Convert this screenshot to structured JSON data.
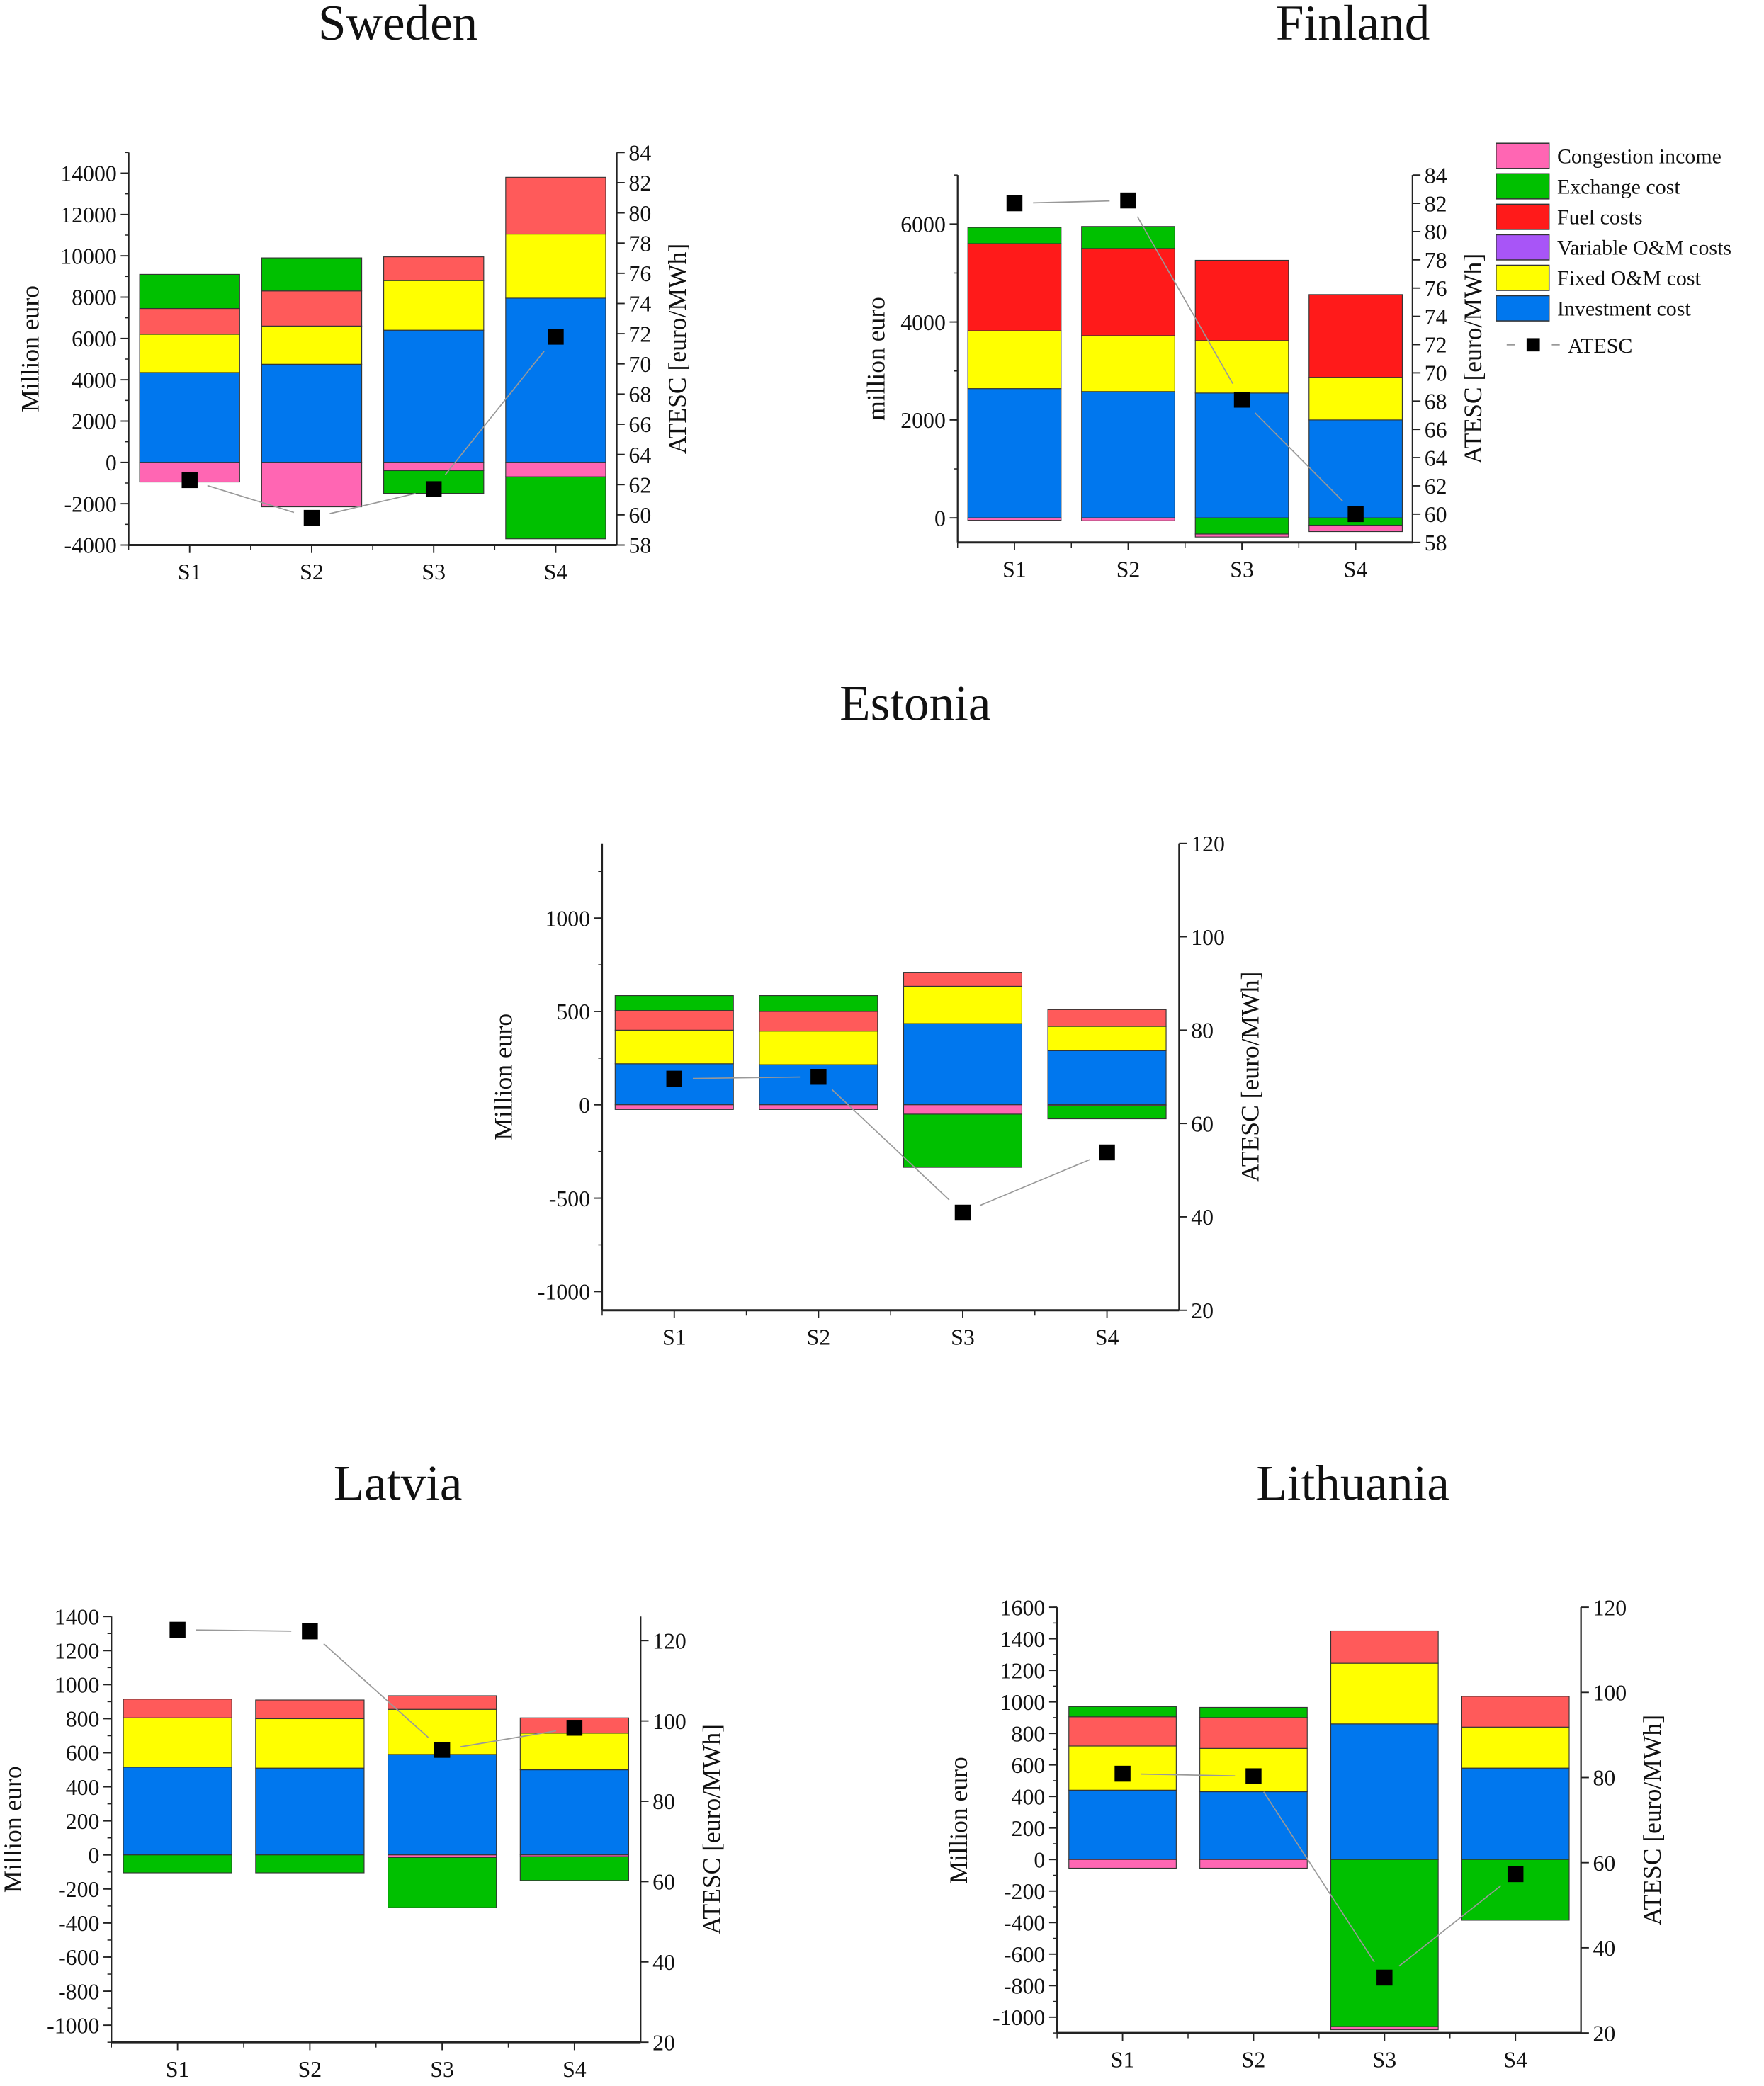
{
  "legend": {
    "items": [
      {
        "label": "Congestion income",
        "color": "#ff66b3"
      },
      {
        "label": "Exchange cost",
        "color": "#00c000"
      },
      {
        "label": "Fuel costs",
        "color": "#ff1a1a"
      },
      {
        "label": "Variable O&M costs",
        "color": "#a855f7"
      },
      {
        "label": "Fixed O&M cost",
        "color": "#ffff00"
      },
      {
        "label": "Investment cost",
        "color": "#0077ee"
      }
    ],
    "line_label": "ATESC"
  },
  "chart_data": [
    {
      "type": "bar",
      "stacked": true,
      "title": "Sweden",
      "ylabel": "Million euro",
      "y2label": "ATESC [euro/MWh]",
      "categories": [
        "S1",
        "S2",
        "S3",
        "S4"
      ],
      "ylim": [
        -4000,
        15000
      ],
      "yticks": [
        "-4000",
        "-2000",
        "0",
        "2000",
        "4000",
        "6000",
        "8000",
        "10000",
        "12000",
        "14000"
      ],
      "y2lim": [
        58,
        84
      ],
      "y2ticks": [
        "58",
        "60",
        "62",
        "64",
        "66",
        "68",
        "70",
        "72",
        "74",
        "76",
        "78",
        "80",
        "82",
        "84"
      ],
      "series": [
        {
          "name": "Investment cost",
          "color": "#0077ee",
          "values": [
            4350,
            4750,
            6400,
            7950
          ]
        },
        {
          "name": "Fixed O&M cost",
          "color": "#ffff00",
          "values": [
            1850,
            1850,
            2400,
            3100
          ]
        },
        {
          "name": "Variable O&M costs",
          "color": "#a855f7",
          "values": [
            0,
            0,
            0,
            0
          ]
        },
        {
          "name": "Fuel costs",
          "color": "#ff5a5a",
          "values": [
            1250,
            1700,
            1150,
            2750
          ]
        },
        {
          "name": "Congestion income",
          "color": "#ff66b3",
          "values": [
            -950,
            -2150,
            -400,
            -700
          ]
        },
        {
          "name": "Exchange cost",
          "color": "#00c000",
          "values": [
            1650,
            1600,
            -1100,
            -3000
          ]
        }
      ],
      "line": {
        "name": "ATESC",
        "values": [
          62.3,
          59.8,
          61.7,
          71.8
        ]
      }
    },
    {
      "type": "bar",
      "stacked": true,
      "title": "Finland",
      "ylabel": "million euro",
      "y2label": "ATESC [euro/MWh]",
      "categories": [
        "S1",
        "S2",
        "S3",
        "S4"
      ],
      "ylim": [
        -500,
        7000
      ],
      "yticks": [
        "0",
        "2000",
        "4000",
        "6000"
      ],
      "y2lim": [
        58,
        84
      ],
      "y2ticks": [
        "58",
        "60",
        "62",
        "64",
        "66",
        "68",
        "70",
        "72",
        "74",
        "76",
        "78",
        "80",
        "82",
        "84"
      ],
      "series": [
        {
          "name": "Investment cost",
          "color": "#0077ee",
          "values": [
            2640,
            2580,
            2550,
            2000
          ]
        },
        {
          "name": "Fixed O&M cost",
          "color": "#ffff00",
          "values": [
            1180,
            1140,
            1070,
            870
          ]
        },
        {
          "name": "Variable O&M costs",
          "color": "#a855f7",
          "values": [
            0,
            0,
            0,
            0
          ]
        },
        {
          "name": "Fuel costs",
          "color": "#ff1a1a",
          "values": [
            1780,
            1780,
            1640,
            1690
          ]
        },
        {
          "name": "Exchange cost",
          "color": "#00c000",
          "values": [
            330,
            450,
            -330,
            -150
          ]
        },
        {
          "name": "Congestion income",
          "color": "#ff66b3",
          "values": [
            -50,
            -60,
            -60,
            -130
          ]
        }
      ],
      "line": {
        "name": "ATESC",
        "values": [
          82.0,
          82.2,
          68.1,
          60.0
        ]
      }
    },
    {
      "type": "bar",
      "stacked": true,
      "title": "Estonia",
      "ylabel": "Million euro",
      "y2label": "ATESC [euro/MWh]",
      "categories": [
        "S1",
        "S2",
        "S3",
        "S4"
      ],
      "ylim": [
        -1100,
        1400
      ],
      "yticks": [
        "-1000",
        "-500",
        "0",
        "500",
        "1000"
      ],
      "y2lim": [
        20,
        120
      ],
      "y2ticks": [
        "20",
        "40",
        "60",
        "80",
        "100",
        "120"
      ],
      "series": [
        {
          "name": "Investment cost",
          "color": "#0077ee",
          "values": [
            220,
            215,
            435,
            290
          ]
        },
        {
          "name": "Fixed O&M cost",
          "color": "#ffff00",
          "values": [
            180,
            180,
            200,
            130
          ]
        },
        {
          "name": "Variable O&M costs",
          "color": "#a855f7",
          "values": [
            0,
            0,
            0,
            0
          ]
        },
        {
          "name": "Fuel costs",
          "color": "#ff5a5a",
          "values": [
            105,
            105,
            75,
            90
          ]
        },
        {
          "name": "Congestion income",
          "color": "#ff66b3",
          "values": [
            -25,
            -25,
            -50,
            -5
          ]
        },
        {
          "name": "Exchange cost",
          "color": "#00c000",
          "values": [
            80,
            85,
            -285,
            -70
          ]
        }
      ],
      "line": {
        "name": "ATESC",
        "values": [
          69.6,
          70.0,
          40.9,
          53.8
        ]
      }
    },
    {
      "type": "bar",
      "stacked": true,
      "title": "Latvia",
      "ylabel": "Million euro",
      "y2label": "ATESC [euro/MWh]",
      "categories": [
        "S1",
        "S2",
        "S3",
        "S4"
      ],
      "ylim": [
        -1100,
        1400
      ],
      "yticks": [
        "-1000",
        "-800",
        "-600",
        "-400",
        "-200",
        "0",
        "200",
        "400",
        "600",
        "800",
        "1000",
        "1200",
        "1400"
      ],
      "y2lim": [
        20,
        126
      ],
      "y2ticks": [
        "20",
        "40",
        "60",
        "80",
        "100",
        "120"
      ],
      "series": [
        {
          "name": "Investment cost",
          "color": "#0077ee",
          "values": [
            515,
            510,
            590,
            500
          ]
        },
        {
          "name": "Fixed O&M cost",
          "color": "#ffff00",
          "values": [
            290,
            290,
            265,
            215
          ]
        },
        {
          "name": "Variable O&M costs",
          "color": "#a855f7",
          "values": [
            0,
            0,
            0,
            0
          ]
        },
        {
          "name": "Fuel costs",
          "color": "#ff5a5a",
          "values": [
            110,
            110,
            80,
            90
          ]
        },
        {
          "name": "Congestion income",
          "color": "#ff66b3",
          "values": [
            0,
            0,
            -15,
            -10
          ]
        },
        {
          "name": "Exchange cost",
          "color": "#00c000",
          "values": [
            -105,
            -105,
            -295,
            -140
          ]
        }
      ],
      "line": {
        "name": "ATESC",
        "values": [
          122.7,
          122.3,
          92.8,
          98.3
        ]
      }
    },
    {
      "type": "bar",
      "stacked": true,
      "title": "Lithuania",
      "ylabel": "Million euro",
      "y2label": "ATESC [euro/MWh]",
      "categories": [
        "S1",
        "S2",
        "S3",
        "S4"
      ],
      "ylim": [
        -1100,
        1600
      ],
      "yticks": [
        "-1000",
        "-800",
        "-600",
        "-400",
        "-200",
        "0",
        "200",
        "400",
        "600",
        "800",
        "1000",
        "1200",
        "1400",
        "1600"
      ],
      "y2lim": [
        20,
        120
      ],
      "y2ticks": [
        "20",
        "40",
        "60",
        "80",
        "100",
        "120"
      ],
      "series": [
        {
          "name": "Investment cost",
          "color": "#0077ee",
          "values": [
            440,
            430,
            860,
            580
          ]
        },
        {
          "name": "Fixed O&M cost",
          "color": "#ffff00",
          "values": [
            280,
            275,
            385,
            260
          ]
        },
        {
          "name": "Variable O&M costs",
          "color": "#a855f7",
          "values": [
            0,
            0,
            0,
            0
          ]
        },
        {
          "name": "Fuel costs",
          "color": "#ff5a5a",
          "values": [
            185,
            195,
            205,
            195
          ]
        },
        {
          "name": "Exchange cost",
          "color": "#00c000",
          "values": [
            65,
            65,
            -1060,
            -385
          ]
        },
        {
          "name": "Congestion income",
          "color": "#ff66b3",
          "values": [
            -55,
            -55,
            -20,
            0
          ]
        }
      ],
      "line": {
        "name": "ATESC",
        "values": [
          80.9,
          80.3,
          33.0,
          57.3
        ]
      }
    }
  ]
}
